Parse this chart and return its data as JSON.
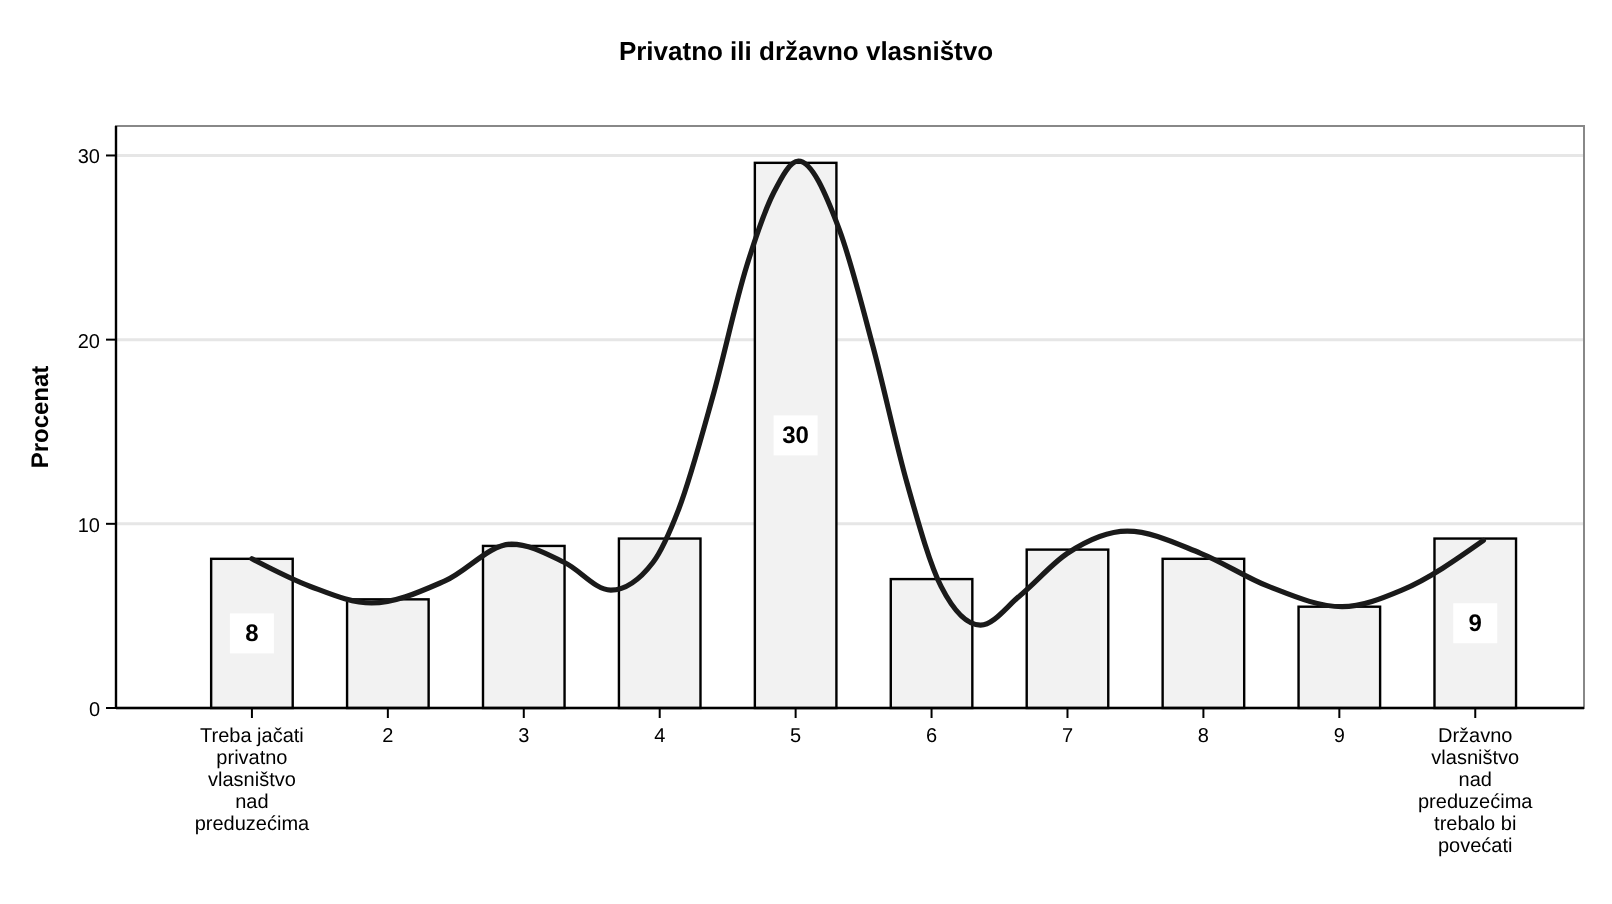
{
  "chart_data": {
    "type": "bar",
    "title": "Privatno ili državno vlasništvo",
    "ylabel": "Procenat",
    "x": [
      1,
      2,
      3,
      4,
      5,
      6,
      7,
      8,
      9,
      10
    ],
    "xlim": [
      0,
      10.8
    ],
    "xticks": [
      {
        "value": 1,
        "label": "Treba jačati privatno vlasništvo nad preduzećima"
      },
      2,
      3,
      4,
      5,
      6,
      7,
      8,
      9,
      {
        "value": 10,
        "label": "Državno vlasništvo nad preduzećima trebalo bi povećati"
      }
    ],
    "ylim": [
      0,
      31.6
    ],
    "yticks": [
      0,
      10,
      20,
      30
    ],
    "grid": "y",
    "series": [
      {
        "color": "#f2f2f2",
        "values": [
          8.1,
          5.9,
          8.8,
          9.2,
          29.6,
          7.0,
          8.6,
          8.1,
          5.5,
          9.2
        ],
        "value_labels": [
          "8",
          null,
          null,
          null,
          "30",
          null,
          null,
          null,
          null,
          "9"
        ]
      },
      {
        "type": "line",
        "color": "#1a1a1a",
        "x": [
          1,
          1.43,
          1.88,
          2.42,
          2.91,
          3.3,
          3.64,
          3.95,
          4.14,
          4.39,
          4.64,
          4.84,
          5.02,
          5.32,
          5.57,
          5.82,
          6.07,
          6.36,
          6.65,
          7.0,
          7.44,
          7.98,
          8.48,
          9.02,
          9.46,
          10.06
        ],
        "values": [
          8.1,
          6.6,
          5.7,
          6.9,
          8.9,
          7.9,
          6.4,
          7.9,
          10.8,
          16.9,
          24.0,
          28.0,
          29.7,
          26.0,
          19.6,
          12.2,
          6.6,
          4.5,
          6.1,
          8.4,
          9.6,
          8.4,
          6.6,
          5.5,
          6.4,
          9.1
        ]
      }
    ]
  }
}
